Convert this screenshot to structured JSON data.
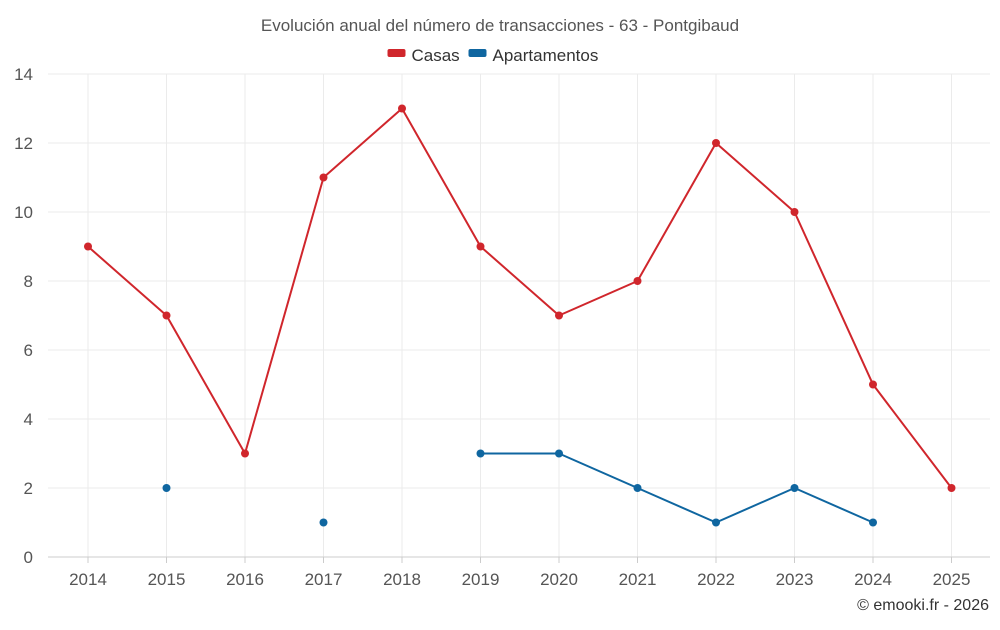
{
  "chart_data": {
    "type": "line",
    "title": "Evolución anual del número de transacciones - 63 - Pontgibaud",
    "categories": [
      "2014",
      "2015",
      "2016",
      "2017",
      "2018",
      "2019",
      "2020",
      "2021",
      "2022",
      "2023",
      "2024",
      "2025"
    ],
    "ylim": [
      0,
      14
    ],
    "yticks": [
      0,
      2,
      4,
      6,
      8,
      10,
      12,
      14
    ],
    "grid": true,
    "legend_position": "top-center",
    "series": [
      {
        "name": "Casas",
        "color": "#d0262c",
        "values": [
          9,
          7,
          3,
          11,
          13,
          9,
          7,
          8,
          12,
          10,
          5,
          2
        ]
      },
      {
        "name": "Apartamentos",
        "color": "#0f66a0",
        "values": [
          null,
          2,
          null,
          1,
          null,
          3,
          3,
          2,
          1,
          2,
          1,
          null
        ]
      }
    ],
    "xlabel": "",
    "ylabel": ""
  },
  "credit": "© emooki.fr - 2026"
}
